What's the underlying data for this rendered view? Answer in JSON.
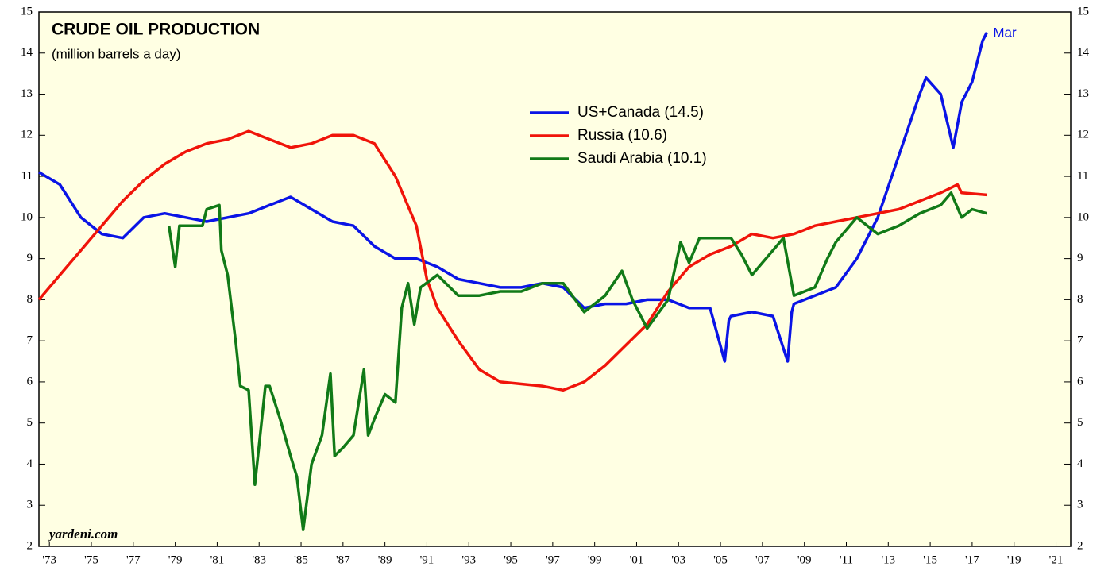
{
  "chart_data": {
    "type": "line",
    "title": "CRUDE OIL PRODUCTION",
    "subtitle": "(million barrels a day)",
    "source": "yardeni.com",
    "annotation": "Mar",
    "background": "#ffffe3",
    "xlim": [
      1973,
      2022.2
    ],
    "xticks": [
      {
        "value": 1973.5,
        "label": "'73"
      },
      {
        "value": 1975.5,
        "label": "'75"
      },
      {
        "value": 1977.5,
        "label": "'77"
      },
      {
        "value": 1979.5,
        "label": "'79"
      },
      {
        "value": 1981.5,
        "label": "'81"
      },
      {
        "value": 1983.5,
        "label": "'83"
      },
      {
        "value": 1985.5,
        "label": "'85"
      },
      {
        "value": 1987.5,
        "label": "'87"
      },
      {
        "value": 1989.5,
        "label": "'89"
      },
      {
        "value": 1991.5,
        "label": "'91"
      },
      {
        "value": 1993.5,
        "label": "'93"
      },
      {
        "value": 1995.5,
        "label": "'95"
      },
      {
        "value": 1997.5,
        "label": "'97"
      },
      {
        "value": 1999.5,
        "label": "'99"
      },
      {
        "value": 2001.5,
        "label": "'01"
      },
      {
        "value": 2003.5,
        "label": "'03"
      },
      {
        "value": 2005.5,
        "label": "'05"
      },
      {
        "value": 2007.5,
        "label": "'07"
      },
      {
        "value": 2009.5,
        "label": "'09"
      },
      {
        "value": 2011.5,
        "label": "'11"
      },
      {
        "value": 2013.5,
        "label": "'13"
      },
      {
        "value": 2015.5,
        "label": "'15"
      },
      {
        "value": 2017.5,
        "label": "'17"
      },
      {
        "value": 2019.5,
        "label": "'19"
      },
      {
        "value": 2021.5,
        "label": "'21"
      }
    ],
    "ylim": [
      2,
      15
    ],
    "yticks": [
      2,
      3,
      4,
      5,
      6,
      7,
      8,
      9,
      10,
      11,
      12,
      13,
      14,
      15
    ],
    "y2lim": [
      2,
      15
    ],
    "y2ticks": [
      2,
      3,
      4,
      5,
      6,
      7,
      8,
      9,
      10,
      11,
      12,
      13,
      14,
      15
    ],
    "series": [
      {
        "name": "US+Canada (14.5)",
        "color": "#0a14e6",
        "x": [
          1973,
          1974,
          1975,
          1976,
          1977,
          1978,
          1979,
          1980,
          1981,
          1982,
          1983,
          1984,
          1985,
          1986,
          1987,
          1988,
          1989,
          1990,
          1991,
          1992,
          1993,
          1994,
          1995,
          1996,
          1997,
          1998,
          1999,
          2000,
          2001,
          2002,
          2003,
          2004,
          2005,
          2005.7,
          2005.9,
          2006,
          2007,
          2008,
          2008.7,
          2008.9,
          2009,
          2010,
          2011,
          2012,
          2013,
          2014,
          2015,
          2015.3,
          2016,
          2016.6,
          2017,
          2017.5,
          2018,
          2018.2
        ],
        "values": [
          11.1,
          10.8,
          10.0,
          9.6,
          9.5,
          10.0,
          10.1,
          10.0,
          9.9,
          10.0,
          10.1,
          10.3,
          10.5,
          10.2,
          9.9,
          9.8,
          9.3,
          9.0,
          9.0,
          8.8,
          8.5,
          8.4,
          8.3,
          8.3,
          8.4,
          8.3,
          7.8,
          7.9,
          7.9,
          8.0,
          8.0,
          7.8,
          7.8,
          6.5,
          7.5,
          7.6,
          7.7,
          7.6,
          6.5,
          7.7,
          7.9,
          8.1,
          8.3,
          9.0,
          10.0,
          11.5,
          13.0,
          13.4,
          13.0,
          11.7,
          12.8,
          13.3,
          14.3,
          14.5
        ]
      },
      {
        "name": "Russia (10.6)",
        "color": "#f0140a",
        "x": [
          1973,
          1974,
          1975,
          1976,
          1977,
          1978,
          1979,
          1980,
          1981,
          1982,
          1983,
          1984,
          1985,
          1986,
          1987,
          1988,
          1989,
          1990,
          1991,
          1991.5,
          1992,
          1993,
          1994,
          1995,
          1996,
          1997,
          1998,
          1999,
          2000,
          2001,
          2002,
          2003,
          2004,
          2005,
          2006,
          2007,
          2008,
          2009,
          2010,
          2011,
          2012,
          2013,
          2014,
          2015,
          2016,
          2016.8,
          2017,
          2018.2
        ],
        "values": [
          8.0,
          8.6,
          9.2,
          9.8,
          10.4,
          10.9,
          11.3,
          11.6,
          11.8,
          11.9,
          12.1,
          11.9,
          11.7,
          11.8,
          12.0,
          12.0,
          11.8,
          11.0,
          9.8,
          8.5,
          7.8,
          7.0,
          6.3,
          6.0,
          5.95,
          5.9,
          5.8,
          6.0,
          6.4,
          6.9,
          7.4,
          8.2,
          8.8,
          9.1,
          9.3,
          9.6,
          9.5,
          9.6,
          9.8,
          9.9,
          10.0,
          10.1,
          10.2,
          10.4,
          10.6,
          10.8,
          10.6,
          10.55
        ]
      },
      {
        "name": "Saudi Arabia (10.1)",
        "color": "#117a17",
        "x": [
          1979.2,
          1979.5,
          1979.7,
          1980,
          1980.8,
          1981,
          1981.6,
          1981.7,
          1982,
          1982.4,
          1982.6,
          1983,
          1983.3,
          1983.8,
          1984,
          1984.5,
          1985,
          1985.3,
          1985.6,
          1986,
          1986.5,
          1986.9,
          1987.1,
          1987.5,
          1988,
          1988.5,
          1988.7,
          1989,
          1989.5,
          1990,
          1990.3,
          1990.6,
          1990.9,
          1991.2,
          1992,
          1993,
          1994,
          1995,
          1996,
          1997,
          1998,
          1999,
          2000,
          2000.8,
          2001.3,
          2002,
          2003,
          2003.6,
          2004,
          2004.5,
          2005,
          2006,
          2006.5,
          2007,
          2008,
          2008.5,
          2009,
          2010,
          2010.6,
          2011,
          2011.5,
          2012,
          2012.5,
          2013,
          2013.5,
          2014,
          2015,
          2016,
          2016.5,
          2017,
          2017.5,
          2018.2
        ],
        "values": [
          9.8,
          8.8,
          9.8,
          9.8,
          9.8,
          10.2,
          10.3,
          9.2,
          8.6,
          6.9,
          5.9,
          5.8,
          3.5,
          5.9,
          5.9,
          5.1,
          4.2,
          3.7,
          2.4,
          4.0,
          4.7,
          6.2,
          4.2,
          4.4,
          4.7,
          6.3,
          4.7,
          5.1,
          5.7,
          5.5,
          7.8,
          8.4,
          7.4,
          8.3,
          8.6,
          8.1,
          8.1,
          8.2,
          8.2,
          8.4,
          8.4,
          7.7,
          8.1,
          8.7,
          8.0,
          7.3,
          8.0,
          9.4,
          8.9,
          9.5,
          9.5,
          9.5,
          9.1,
          8.6,
          9.2,
          9.5,
          8.1,
          8.3,
          9.0,
          9.4,
          9.7,
          10.0,
          9.8,
          9.6,
          9.7,
          9.8,
          10.1,
          10.3,
          10.6,
          10.0,
          10.2,
          10.1
        ]
      }
    ]
  }
}
